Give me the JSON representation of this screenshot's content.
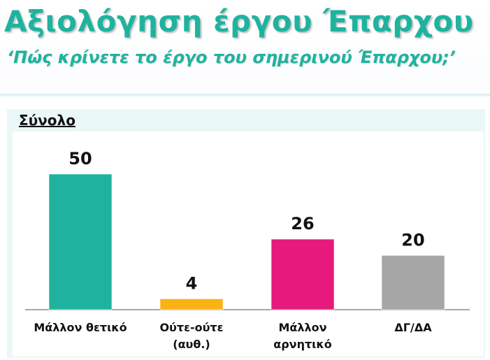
{
  "header": {
    "title": "Αξιολόγηση έργου Έπαρχου",
    "subtitle": "‘Πώς κρίνετε το έργο του σημερινού Έπαρχου;’"
  },
  "panel": {
    "label": "Σύνολο"
  },
  "chart_data": {
    "type": "bar",
    "title": "",
    "xlabel": "",
    "ylabel": "",
    "categories": [
      "Μάλλον θετικό",
      "Ούτε-ούτε (αυθ.)",
      "Μάλλον αρνητικό",
      "ΔΓ/ΔΑ"
    ],
    "category_lines": [
      [
        "Μάλλον θετικό"
      ],
      [
        "Ούτε-ούτε",
        "(αυθ.)"
      ],
      [
        "Μάλλον",
        "αρνητικό"
      ],
      [
        "ΔΓ/ΔΑ"
      ]
    ],
    "values": [
      50,
      4,
      26,
      20
    ],
    "colors": [
      "#1fb39f",
      "#f9b314",
      "#e6197c",
      "#a6a6a6"
    ],
    "ylim": [
      0,
      50
    ],
    "grid": false,
    "data_labels": true
  }
}
